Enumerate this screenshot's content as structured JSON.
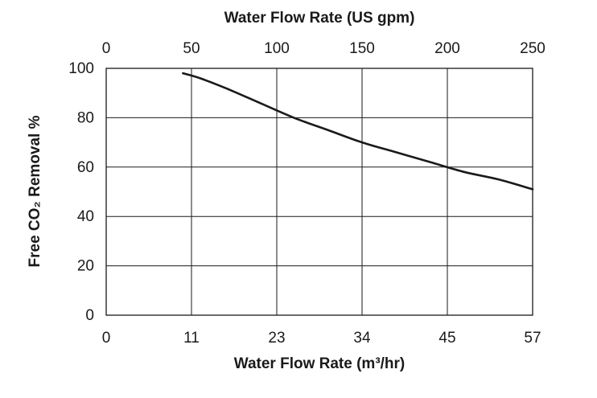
{
  "chart_data": {
    "type": "line",
    "title": "",
    "xlabel": "Water Flow Rate (m³/hr)",
    "x2label": "Water Flow Rate (US gpm)",
    "ylabel": "Free CO₂ Removal %",
    "xlim": [
      0,
      250
    ],
    "ylim": [
      0,
      100
    ],
    "grid": true,
    "x_ticks_top": [
      "0",
      "50",
      "100",
      "150",
      "200",
      "250"
    ],
    "x_ticks_bottom": [
      "0",
      "11",
      "23",
      "34",
      "45",
      "57"
    ],
    "y_ticks": [
      "0",
      "20",
      "40",
      "60",
      "80",
      "100"
    ],
    "series": [
      {
        "color": "#1a1a1a",
        "x": [
          45,
          55,
          70,
          90,
          110,
          130,
          150,
          170,
          190,
          210,
          230,
          250
        ],
        "y": [
          98,
          96,
          92,
          86,
          80,
          75,
          70,
          66,
          62,
          58,
          55,
          51
        ]
      }
    ]
  }
}
